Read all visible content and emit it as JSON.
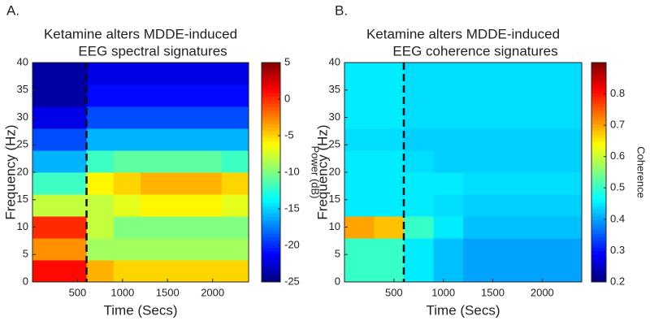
{
  "chart_data": [
    {
      "type": "heatmap",
      "panel_label": "A.",
      "title": [
        "Ketamine alters MDDE-induced",
        "EEG spectral signatures"
      ],
      "xlabel": "Time (Secs)",
      "ylabel": "Frequency (Hz)",
      "xlim": [
        0,
        2400
      ],
      "xticks": [
        500,
        1000,
        1500,
        2000
      ],
      "ylim": [
        0,
        40
      ],
      "yticks": [
        0,
        5,
        10,
        15,
        20,
        25,
        30,
        35,
        40
      ],
      "vline": 600,
      "colormap": "jet",
      "colorbar": {
        "label": "Power (dB)",
        "lim": [
          -25,
          5
        ],
        "ticks": [
          -25,
          -20,
          -15,
          -10,
          -5,
          0,
          5
        ]
      },
      "xbins": [
        0,
        300,
        600,
        900,
        1200,
        1500,
        1800,
        2100,
        2400
      ],
      "ybins": [
        0,
        4,
        8,
        12,
        16,
        20,
        24,
        28,
        32,
        36,
        40
      ],
      "z": [
        [
          1,
          1,
          -4,
          -5,
          -5,
          -5,
          -5,
          -5
        ],
        [
          -3,
          -3,
          -9,
          -9,
          -9,
          -9,
          -9,
          -9
        ],
        [
          0,
          0,
          -8,
          -10,
          -10,
          -10,
          -10,
          -10
        ],
        [
          -8,
          -8,
          -8,
          -7,
          -6,
          -6,
          -6,
          -7
        ],
        [
          -12,
          -12,
          -6,
          -5,
          -4,
          -4,
          -4,
          -5
        ],
        [
          -16,
          -16,
          -12,
          -11,
          -11,
          -11,
          -11,
          -12
        ],
        [
          -19,
          -19,
          -16,
          -16,
          -16,
          -16,
          -16,
          -16
        ],
        [
          -22,
          -22,
          -19,
          -19,
          -19,
          -19,
          -19,
          -19
        ],
        [
          -24,
          -24,
          -21,
          -21,
          -21,
          -21,
          -21,
          -21
        ],
        [
          -24,
          -24,
          -22,
          -22,
          -22,
          -22,
          -22,
          -22
        ]
      ]
    },
    {
      "type": "heatmap",
      "panel_label": "B.",
      "title": [
        "Ketamine alters MDDE-induced",
        "EEG coherence signatures"
      ],
      "xlabel": "Time (Secs)",
      "ylabel": "Frequency (Hz)",
      "xlim": [
        0,
        2400
      ],
      "xticks": [
        500,
        1000,
        1500,
        2000
      ],
      "ylim": [
        0,
        40
      ],
      "yticks": [
        0,
        5,
        10,
        15,
        20,
        25,
        30,
        35,
        40
      ],
      "vline": 600,
      "colormap": "jet",
      "colorbar": {
        "label": "Coherence",
        "lim": [
          0.2,
          0.9
        ],
        "ticks": [
          0.2,
          0.3,
          0.4,
          0.5,
          0.6,
          0.7,
          0.8
        ]
      },
      "xbins": [
        0,
        300,
        600,
        900,
        1200,
        1500,
        1800,
        2100,
        2400
      ],
      "ybins": [
        0,
        4,
        8,
        12,
        16,
        20,
        24,
        28,
        32,
        36,
        40
      ],
      "z": [
        [
          0.5,
          0.5,
          0.45,
          0.42,
          0.4,
          0.4,
          0.4,
          0.4
        ],
        [
          0.5,
          0.5,
          0.45,
          0.42,
          0.4,
          0.4,
          0.4,
          0.4
        ],
        [
          0.7,
          0.68,
          0.5,
          0.45,
          0.42,
          0.42,
          0.42,
          0.42
        ],
        [
          0.45,
          0.45,
          0.45,
          0.44,
          0.43,
          0.43,
          0.43,
          0.43
        ],
        [
          0.45,
          0.45,
          0.45,
          0.45,
          0.44,
          0.44,
          0.44,
          0.44
        ],
        [
          0.45,
          0.45,
          0.44,
          0.43,
          0.43,
          0.43,
          0.43,
          0.43
        ],
        [
          0.44,
          0.44,
          0.43,
          0.43,
          0.43,
          0.43,
          0.43,
          0.43
        ],
        [
          0.45,
          0.45,
          0.44,
          0.44,
          0.44,
          0.44,
          0.44,
          0.44
        ],
        [
          0.45,
          0.45,
          0.44,
          0.44,
          0.44,
          0.44,
          0.44,
          0.44
        ],
        [
          0.45,
          0.45,
          0.44,
          0.44,
          0.44,
          0.44,
          0.44,
          0.44
        ]
      ]
    }
  ]
}
